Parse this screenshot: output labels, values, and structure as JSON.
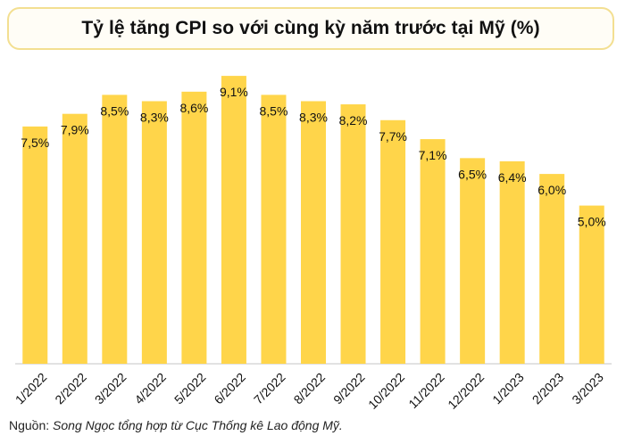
{
  "chart_data": {
    "type": "bar",
    "title": "Tỷ lệ tăng CPI so với cùng kỳ năm trước tại Mỹ (%)",
    "categories": [
      "1/2022",
      "2/2022",
      "3/2022",
      "4/2022",
      "5/2022",
      "6/2022",
      "7/2022",
      "8/2022",
      "9/2022",
      "10/2022",
      "11/2022",
      "12/2022",
      "1/2023",
      "2/2023",
      "3/2023"
    ],
    "values": [
      7.5,
      7.9,
      8.5,
      8.3,
      8.6,
      9.1,
      8.5,
      8.3,
      8.2,
      7.7,
      7.1,
      6.5,
      6.4,
      6.0,
      5.0
    ],
    "data_labels": [
      "7,5%",
      "7,9%",
      "8,5%",
      "8,3%",
      "8,6%",
      "9,1%",
      "8,5%",
      "8,3%",
      "8,2%",
      "7,7%",
      "7,1%",
      "6,5%",
      "6,4%",
      "6,0%",
      "5,0%"
    ],
    "xlabel": "",
    "ylabel": "",
    "ylim": [
      0,
      9.3
    ],
    "grid": false,
    "legend": "none",
    "bar_color": "#ffd54a"
  },
  "source": {
    "label": "Nguồn:",
    "text": "Song Ngọc tổng hợp từ Cục Thống kê Lao động Mỹ."
  }
}
